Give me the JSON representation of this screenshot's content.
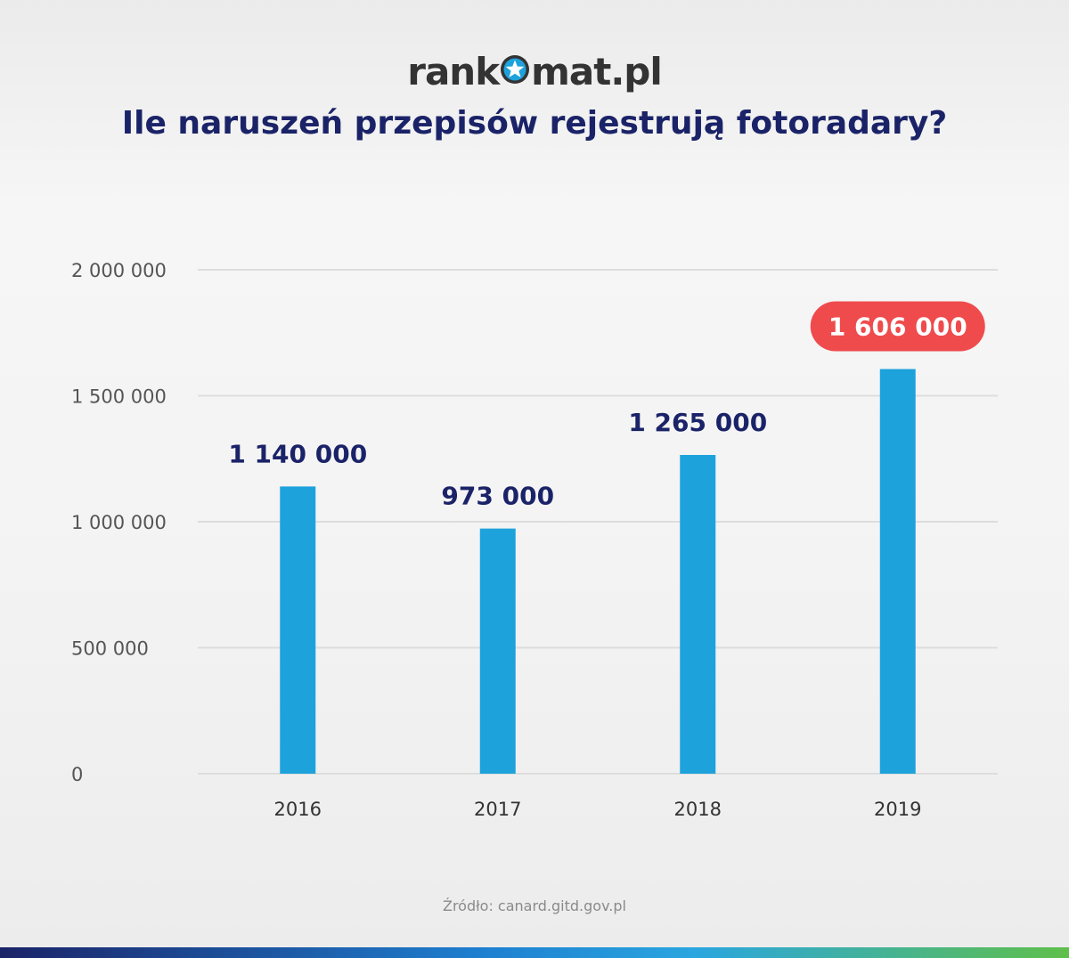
{
  "header": {
    "logo_text_left": "rank",
    "logo_text_right": "mat.pl",
    "title": "Ile naruszeń przepisów rejestrują fotoradary?"
  },
  "footer": {
    "source": "Źródło: canard.gitd.gov.pl"
  },
  "colors": {
    "bar": "#1ea2dc",
    "highlight_badge": "#ef4b4d",
    "value_label": "#1b2368",
    "title": "#1b2368",
    "grid": "#dddddd",
    "axis_text": "#555555"
  },
  "icons": {
    "logo_mark": "star-in-circle-icon"
  },
  "chart_data": {
    "type": "bar",
    "title": "Ile naruszeń przepisów rejestrują fotoradary?",
    "categories": [
      "2016",
      "2017",
      "2018",
      "2019"
    ],
    "values": [
      1140000,
      973000,
      1265000,
      1606000
    ],
    "value_labels": [
      "1 140 000",
      "973 000",
      "1 265 000",
      "1 606 000"
    ],
    "highlighted_index": 3,
    "ylim": [
      0,
      2000000
    ],
    "yticks": [
      0,
      500000,
      1000000,
      1500000,
      2000000
    ],
    "ytick_labels": [
      "0",
      "500 000",
      "1 000 000",
      "1 500 000",
      "2 000 000"
    ],
    "xlabel": "",
    "ylabel": "",
    "grid": true,
    "legend": false
  }
}
